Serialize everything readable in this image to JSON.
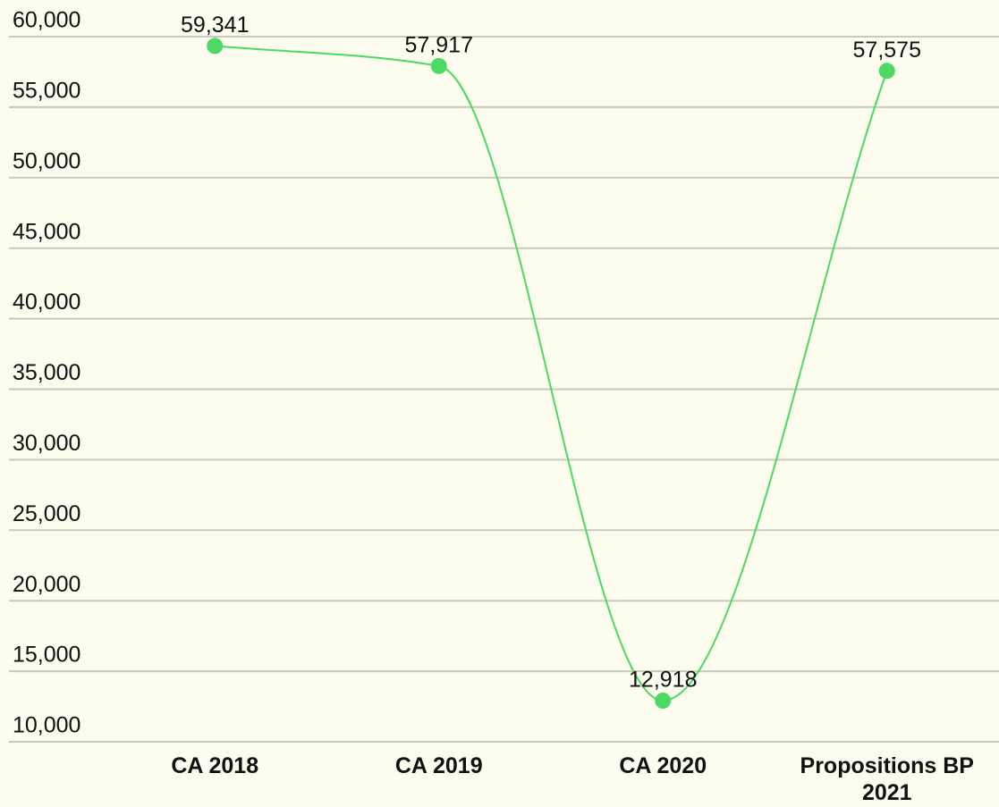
{
  "chart_data": {
    "type": "line",
    "categories": [
      "CA 2018",
      "CA 2019",
      "CA 2020",
      "Propositions BP 2021"
    ],
    "values": [
      59341,
      57917,
      12918,
      57575
    ],
    "value_labels": [
      "59,341",
      "57,917",
      "12,918",
      "57,575"
    ],
    "color": "#4cd964",
    "ylim": [
      10000,
      60000
    ],
    "yticks": [
      {
        "value": 10000,
        "label": "10,000"
      },
      {
        "value": 15000,
        "label": "15,000"
      },
      {
        "value": 20000,
        "label": "20,000"
      },
      {
        "value": 25000,
        "label": "25,000"
      },
      {
        "value": 30000,
        "label": "30,000"
      },
      {
        "value": 35000,
        "label": "35,000"
      },
      {
        "value": 40000,
        "label": "40,000"
      },
      {
        "value": 45000,
        "label": "45,000"
      },
      {
        "value": 50000,
        "label": "50,000"
      },
      {
        "value": 55000,
        "label": "55,000"
      },
      {
        "value": 60000,
        "label": "60,000"
      }
    ],
    "grid": true
  }
}
